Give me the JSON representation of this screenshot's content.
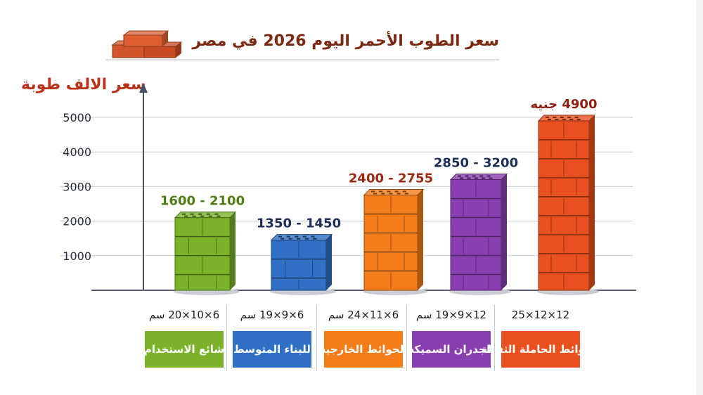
{
  "title": "سعر الطوب الأحمر اليوم 2026 في مصر",
  "chart_data": {
    "type": "bar",
    "title": "سعر الطوب الأحمر اليوم 2026 في مصر",
    "ylabel": "سعر الالف طوبة",
    "xlabel": "",
    "ylim": [
      0,
      5500
    ],
    "yticks": [
      1000,
      2000,
      3000,
      4000,
      5000
    ],
    "grid": true,
    "categories": [
      "شائع الاستخدام",
      "للبناء المتوسط",
      "الحوائط الخارجية",
      "للجدران السميكة",
      "الحوائط الحاملة الثقيلة"
    ],
    "dimensions": [
      "6×10×20 سم",
      "6×9×19 سم",
      "6×11×24 سم",
      "12×9×19 سم",
      "12×12×25"
    ],
    "value_labels": [
      "1600 - 2100",
      "1350 - 1450",
      "2400 - 2755",
      "2850 - 3200",
      "4900 جنيه"
    ],
    "ranges": [
      [
        1600,
        2100
      ],
      [
        1350,
        1450
      ],
      [
        2400,
        2755
      ],
      [
        2850,
        3200
      ],
      [
        4900,
        4900
      ]
    ],
    "values": [
      2100,
      1450,
      2755,
      3200,
      4900
    ],
    "colors": [
      "#7bb22a",
      "#2f6fc4",
      "#f27d1a",
      "#8a3fb0",
      "#e8501f"
    ],
    "label_colors": [
      "#4e7d12",
      "#1d2f55",
      "#9a2a12",
      "#1d2f55",
      "#8c1f0e"
    ]
  },
  "icons": {
    "title_decoration": "brick-stack-icon"
  }
}
